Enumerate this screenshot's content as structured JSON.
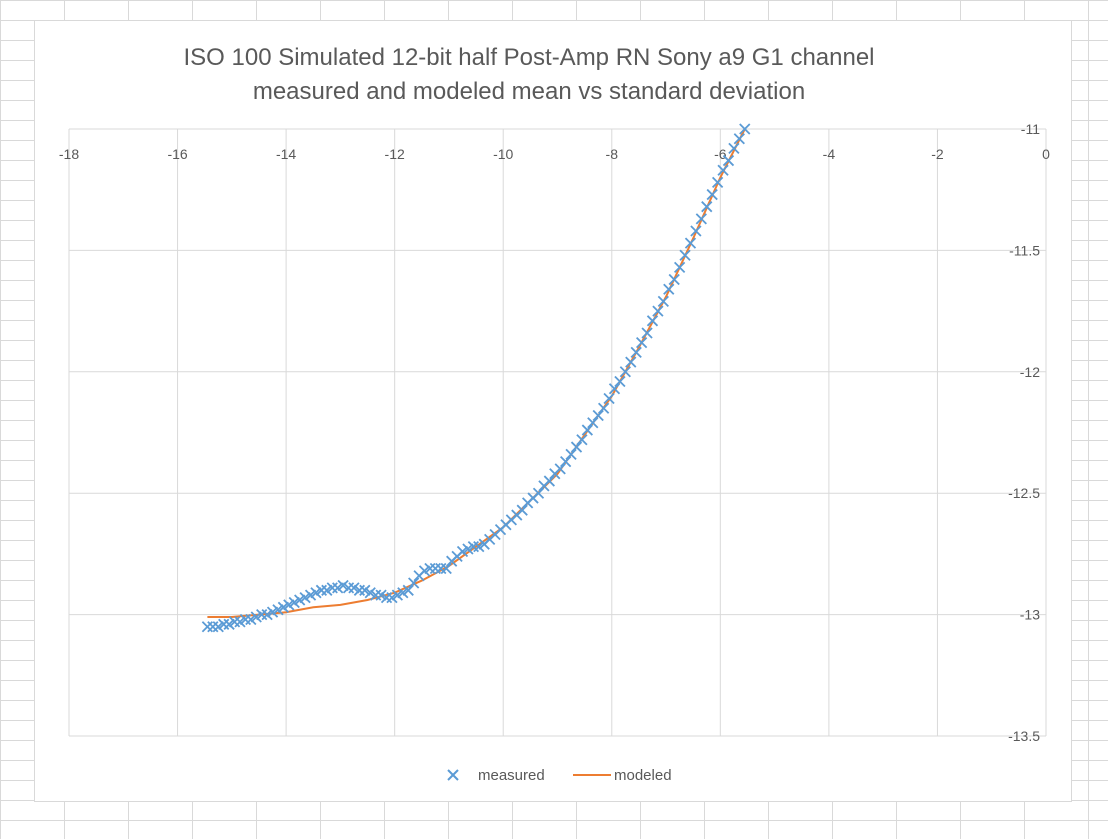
{
  "chart_data": {
    "type": "scatter",
    "title_lines": [
      "ISO 100 Simulated 12-bit half Post-Amp RN Sony a9 G1 channel",
      "measured and modeled mean vs standard deviation"
    ],
    "xlabel": "",
    "ylabel": "",
    "xlim": [
      -18,
      0
    ],
    "ylim": [
      -13.5,
      -11
    ],
    "x_ticks": [
      -18,
      -16,
      -14,
      -12,
      -10,
      -8,
      -6,
      -4,
      -2,
      0
    ],
    "y_ticks": [
      -11,
      -11.5,
      -12,
      -12.5,
      -13,
      -13.5
    ],
    "x_tick_labels": [
      "-18",
      "-16",
      "-14",
      "-12",
      "-10",
      "-8",
      "-6",
      "-4",
      "-2",
      "0"
    ],
    "y_tick_labels": [
      "-11",
      "-11.5",
      "-12",
      "-12.5",
      "-13",
      "-13.5"
    ],
    "grid": true,
    "x_axis_position": "top",
    "y_axis_position": "right",
    "legend_position": "bottom",
    "series": [
      {
        "name": "measured",
        "marker": "x",
        "color": "#5b9bd5",
        "points": [
          [
            -15.45,
            -13.05
          ],
          [
            -15.35,
            -13.05
          ],
          [
            -15.25,
            -13.05
          ],
          [
            -15.15,
            -13.04
          ],
          [
            -15.05,
            -13.04
          ],
          [
            -14.95,
            -13.03
          ],
          [
            -14.85,
            -13.03
          ],
          [
            -14.75,
            -13.02
          ],
          [
            -14.65,
            -13.02
          ],
          [
            -14.55,
            -13.01
          ],
          [
            -14.45,
            -13.0
          ],
          [
            -14.35,
            -13.0
          ],
          [
            -14.25,
            -12.99
          ],
          [
            -14.15,
            -12.98
          ],
          [
            -14.05,
            -12.97
          ],
          [
            -13.95,
            -12.96
          ],
          [
            -13.85,
            -12.95
          ],
          [
            -13.75,
            -12.94
          ],
          [
            -13.65,
            -12.93
          ],
          [
            -13.55,
            -12.92
          ],
          [
            -13.45,
            -12.91
          ],
          [
            -13.35,
            -12.9
          ],
          [
            -13.25,
            -12.9
          ],
          [
            -13.15,
            -12.89
          ],
          [
            -13.05,
            -12.89
          ],
          [
            -12.95,
            -12.88
          ],
          [
            -12.85,
            -12.89
          ],
          [
            -12.75,
            -12.89
          ],
          [
            -12.65,
            -12.9
          ],
          [
            -12.55,
            -12.9
          ],
          [
            -12.45,
            -12.91
          ],
          [
            -12.35,
            -12.92
          ],
          [
            -12.25,
            -12.92
          ],
          [
            -12.15,
            -12.93
          ],
          [
            -12.05,
            -12.93
          ],
          [
            -11.95,
            -12.92
          ],
          [
            -11.85,
            -12.91
          ],
          [
            -11.75,
            -12.9
          ],
          [
            -11.65,
            -12.87
          ],
          [
            -11.55,
            -12.84
          ],
          [
            -11.45,
            -12.82
          ],
          [
            -11.35,
            -12.81
          ],
          [
            -11.25,
            -12.81
          ],
          [
            -11.15,
            -12.81
          ],
          [
            -11.05,
            -12.81
          ],
          [
            -10.95,
            -12.78
          ],
          [
            -10.85,
            -12.76
          ],
          [
            -10.75,
            -12.74
          ],
          [
            -10.65,
            -12.73
          ],
          [
            -10.55,
            -12.72
          ],
          [
            -10.45,
            -12.72
          ],
          [
            -10.35,
            -12.71
          ],
          [
            -10.25,
            -12.69
          ],
          [
            -10.15,
            -12.67
          ],
          [
            -10.05,
            -12.65
          ],
          [
            -9.95,
            -12.63
          ],
          [
            -9.85,
            -12.61
          ],
          [
            -9.75,
            -12.59
          ],
          [
            -9.65,
            -12.57
          ],
          [
            -9.55,
            -12.54
          ],
          [
            -9.45,
            -12.52
          ],
          [
            -9.35,
            -12.5
          ],
          [
            -9.25,
            -12.47
          ],
          [
            -9.15,
            -12.45
          ],
          [
            -9.05,
            -12.42
          ],
          [
            -8.95,
            -12.4
          ],
          [
            -8.85,
            -12.37
          ],
          [
            -8.75,
            -12.34
          ],
          [
            -8.65,
            -12.31
          ],
          [
            -8.55,
            -12.28
          ],
          [
            -8.45,
            -12.24
          ],
          [
            -8.35,
            -12.21
          ],
          [
            -8.25,
            -12.18
          ],
          [
            -8.15,
            -12.15
          ],
          [
            -8.05,
            -12.11
          ],
          [
            -7.95,
            -12.07
          ],
          [
            -7.85,
            -12.04
          ],
          [
            -7.75,
            -12.0
          ],
          [
            -7.65,
            -11.96
          ],
          [
            -7.55,
            -11.92
          ],
          [
            -7.45,
            -11.88
          ],
          [
            -7.35,
            -11.84
          ],
          [
            -7.25,
            -11.79
          ],
          [
            -7.15,
            -11.75
          ],
          [
            -7.05,
            -11.71
          ],
          [
            -6.95,
            -11.66
          ],
          [
            -6.85,
            -11.62
          ],
          [
            -6.75,
            -11.57
          ],
          [
            -6.65,
            -11.52
          ],
          [
            -6.55,
            -11.47
          ],
          [
            -6.45,
            -11.42
          ],
          [
            -6.35,
            -11.37
          ],
          [
            -6.25,
            -11.32
          ],
          [
            -6.15,
            -11.27
          ],
          [
            -6.05,
            -11.22
          ],
          [
            -5.95,
            -11.17
          ],
          [
            -5.85,
            -11.13
          ],
          [
            -5.75,
            -11.08
          ],
          [
            -5.65,
            -11.04
          ],
          [
            -5.55,
            -11.0
          ]
        ]
      },
      {
        "name": "modeled",
        "marker": "line",
        "color": "#ed7d31",
        "points": [
          [
            -15.45,
            -13.01
          ],
          [
            -15.0,
            -13.01
          ],
          [
            -14.5,
            -13.0
          ],
          [
            -14.0,
            -12.99
          ],
          [
            -13.5,
            -12.97
          ],
          [
            -13.0,
            -12.96
          ],
          [
            -12.5,
            -12.94
          ],
          [
            -12.0,
            -12.91
          ],
          [
            -11.5,
            -12.86
          ],
          [
            -11.0,
            -12.8
          ],
          [
            -10.5,
            -12.72
          ],
          [
            -10.0,
            -12.64
          ],
          [
            -9.5,
            -12.53
          ],
          [
            -9.0,
            -12.42
          ],
          [
            -8.5,
            -12.26
          ],
          [
            -8.0,
            -12.1
          ],
          [
            -7.5,
            -11.9
          ],
          [
            -7.0,
            -11.69
          ],
          [
            -6.5,
            -11.45
          ],
          [
            -6.0,
            -11.2
          ],
          [
            -5.55,
            -11.0
          ]
        ]
      }
    ]
  }
}
